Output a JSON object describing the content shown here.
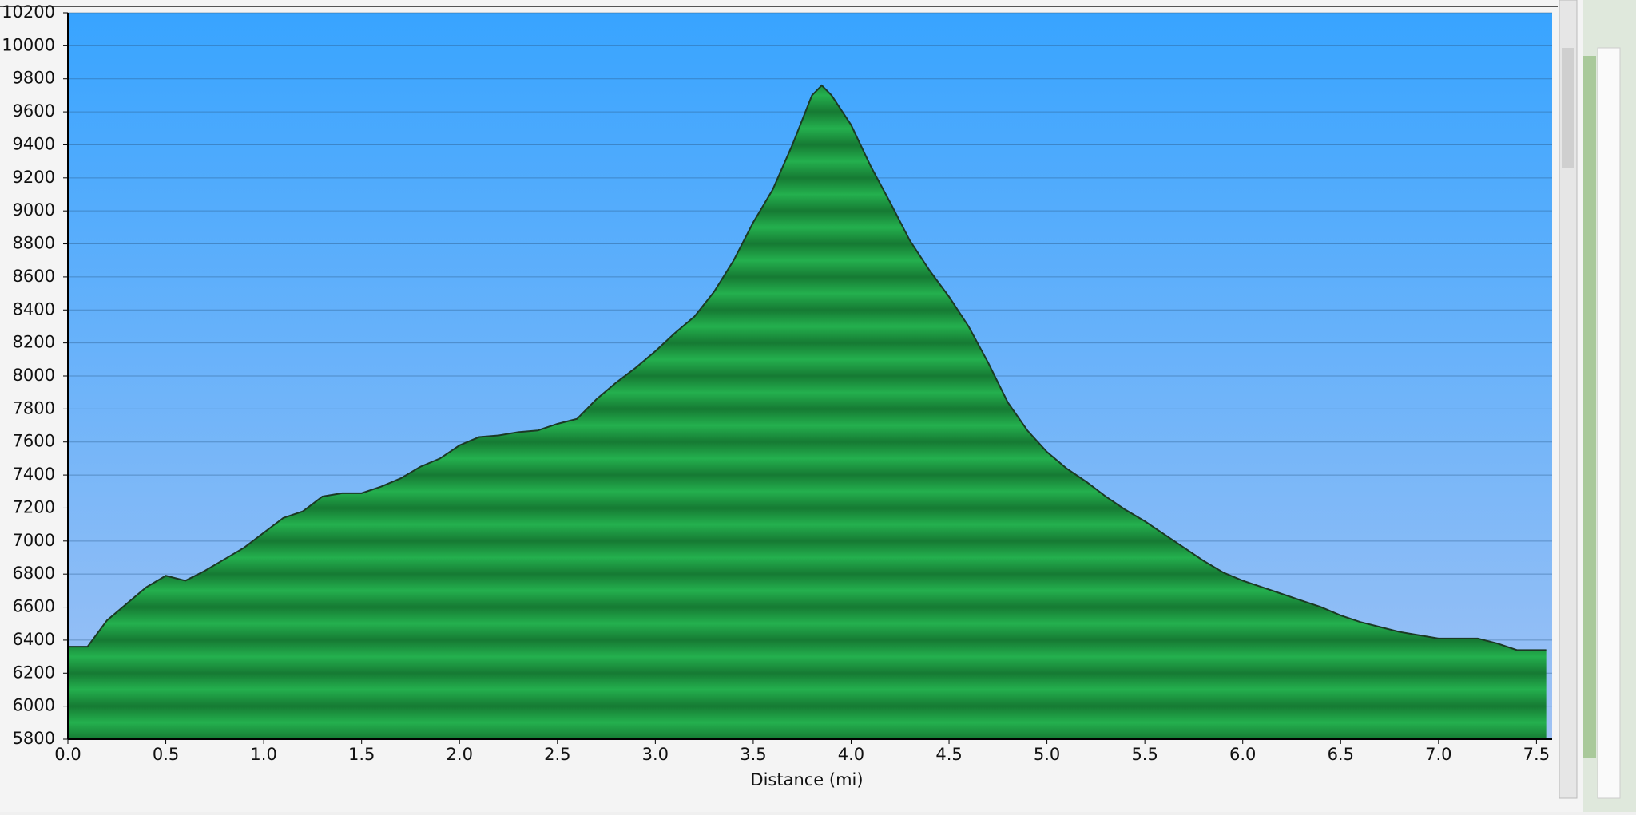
{
  "chart_data": {
    "type": "area",
    "xlabel": "Distance   (mi)",
    "x": [
      0.0,
      0.1,
      0.2,
      0.3,
      0.4,
      0.5,
      0.6,
      0.7,
      0.8,
      0.9,
      1.0,
      1.1,
      1.2,
      1.3,
      1.4,
      1.5,
      1.6,
      1.7,
      1.8,
      1.9,
      2.0,
      2.1,
      2.2,
      2.3,
      2.4,
      2.5,
      2.6,
      2.7,
      2.8,
      2.9,
      3.0,
      3.1,
      3.2,
      3.3,
      3.4,
      3.5,
      3.6,
      3.7,
      3.8,
      3.85,
      3.9,
      4.0,
      4.1,
      4.2,
      4.3,
      4.4,
      4.5,
      4.6,
      4.7,
      4.8,
      4.9,
      5.0,
      5.1,
      5.2,
      5.3,
      5.4,
      5.5,
      5.6,
      5.7,
      5.8,
      5.9,
      6.0,
      6.1,
      6.2,
      6.3,
      6.4,
      6.5,
      6.6,
      6.7,
      6.8,
      6.9,
      7.0,
      7.1,
      7.2,
      7.3,
      7.4,
      7.5,
      7.55
    ],
    "values": [
      6360,
      6360,
      6520,
      6620,
      6720,
      6790,
      6760,
      6820,
      6890,
      6960,
      7050,
      7140,
      7180,
      7270,
      7290,
      7290,
      7330,
      7380,
      7450,
      7500,
      7580,
      7630,
      7640,
      7660,
      7670,
      7710,
      7740,
      7860,
      7960,
      8050,
      8150,
      8260,
      8360,
      8510,
      8700,
      8930,
      9130,
      9400,
      9700,
      9760,
      9700,
      9520,
      9270,
      9050,
      8820,
      8640,
      8480,
      8300,
      8080,
      7840,
      7670,
      7540,
      7440,
      7360,
      7270,
      7190,
      7120,
      7040,
      6960,
      6880,
      6810,
      6760,
      6720,
      6680,
      6640,
      6600,
      6550,
      6510,
      6480,
      6450,
      6430,
      6410,
      6410,
      6410,
      6380,
      6340,
      6340,
      6340
    ],
    "color": "#1fa548",
    "line_color": "#1c3a24",
    "xlim": [
      0,
      7.58
    ],
    "ylim": [
      5800,
      10200
    ],
    "xticks": [
      {
        "value": 0,
        "label": "0.0"
      },
      0.5,
      {
        "value": 1,
        "label": "1.0"
      },
      1.5,
      {
        "value": 2,
        "label": "2.0"
      },
      2.5,
      {
        "value": 3,
        "label": "3.0"
      },
      3.5,
      {
        "value": 4,
        "label": "4.0"
      },
      4.5,
      {
        "value": 5,
        "label": "5.0"
      },
      5.5,
      {
        "value": 6,
        "label": "6.0"
      },
      6.5,
      {
        "value": 7,
        "label": "7.0"
      },
      7.5
    ],
    "yticks": [
      5800,
      6000,
      6200,
      6400,
      6600,
      6800,
      7000,
      7200,
      7400,
      7600,
      7800,
      8000,
      8200,
      8400,
      8600,
      8800,
      9000,
      9200,
      9400,
      9600,
      9800,
      10000,
      10200
    ],
    "grid": true
  }
}
